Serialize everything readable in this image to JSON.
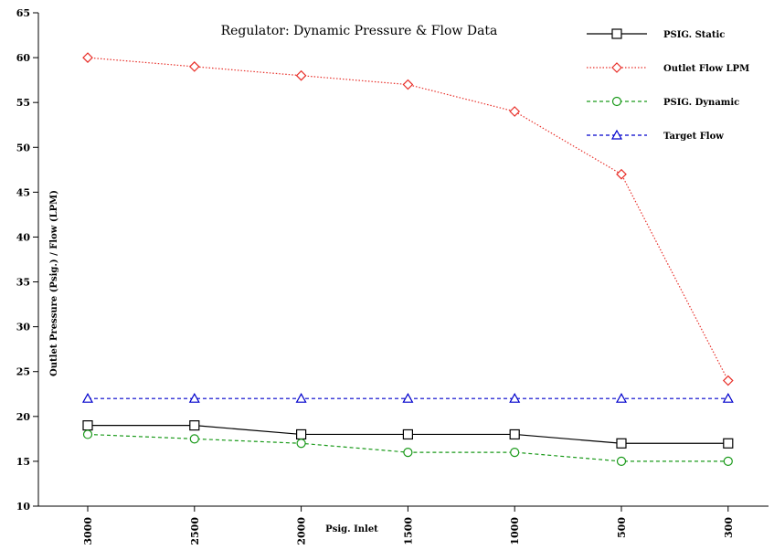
{
  "chart_data": {
    "type": "line",
    "title": "Regulator: Dynamic Pressure & Flow Data",
    "xlabel": "Psig. Inlet",
    "ylabel": "Outlet Pressure (Psig.) / Flow (LPM)",
    "categories": [
      "3000",
      "2500",
      "2000",
      "1500",
      "1000",
      "500",
      "300"
    ],
    "ylim": [
      10,
      65
    ],
    "yticks": [
      10,
      15,
      20,
      25,
      30,
      35,
      40,
      45,
      50,
      55,
      60,
      65
    ],
    "grid": false,
    "legend_position": "top-right",
    "series": [
      {
        "name": "PSIG. Static",
        "values": [
          19,
          19,
          18,
          18,
          18,
          17,
          17
        ],
        "color": "#000000",
        "marker": "square",
        "dash": "solid"
      },
      {
        "name": "Outlet Flow LPM",
        "values": [
          60,
          59,
          58,
          57,
          54,
          47,
          24
        ],
        "color": "#e8302a",
        "marker": "diamond",
        "dash": "dotted"
      },
      {
        "name": "PSIG. Dynamic",
        "values": [
          18,
          17.5,
          17,
          16,
          16,
          15,
          15
        ],
        "color": "#1a9a1a",
        "marker": "circle",
        "dash": "dashed"
      },
      {
        "name": "Target Flow",
        "values": [
          22,
          22,
          22,
          22,
          22,
          22,
          22
        ],
        "color": "#0000cc",
        "marker": "triangle",
        "dash": "dashed"
      }
    ]
  }
}
